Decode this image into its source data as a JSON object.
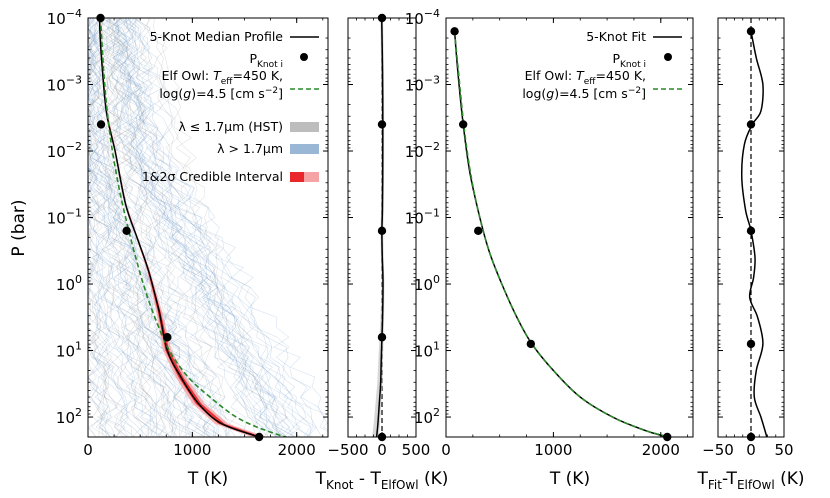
{
  "colors": {
    "median": "#000000",
    "elfowl": "#2a8a2a",
    "hst": "#a8a8a8",
    "long": "#6f9cc8",
    "ci1": "#e8262b",
    "ci2": "#f5a3a5",
    "knot_fill": "#000000"
  },
  "chart_data": [
    {
      "id": "panel-a",
      "type": "line",
      "title": "",
      "xlabel": "T (K)",
      "ylabel": "P (bar)",
      "xlim": [
        0,
        2300
      ],
      "ylim_log10": [
        -4,
        2.3
      ],
      "y_scale": "log_inverted",
      "xticks": [
        0,
        1000,
        2000
      ],
      "xtick_labels": [
        "0",
        "1000",
        "2000"
      ],
      "ytick_exponents": [
        -4,
        -3,
        -2,
        -1,
        0,
        1,
        2
      ],
      "ytick_labels": [
        {
          "base": "10",
          "exp": "−4"
        },
        {
          "base": "10",
          "exp": "−3"
        },
        {
          "base": "10",
          "exp": "−2"
        },
        {
          "base": "10",
          "exp": "−1"
        },
        {
          "base": "10",
          "exp": "0"
        },
        {
          "base": "10",
          "exp": "1"
        },
        {
          "base": "10",
          "exp": "2"
        }
      ],
      "series": [
        {
          "name": "5-Knot Median Profile",
          "kind": "median",
          "T": [
            110,
            125,
            175,
            260,
            360,
            470,
            580,
            680,
            760,
            890,
            1060,
            1280,
            1640
          ],
          "logP": [
            -4.0,
            -3.5,
            -2.6,
            -2.0,
            -1.2,
            -0.7,
            -0.2,
            0.4,
            1.0,
            1.4,
            1.8,
            2.1,
            2.3
          ]
        },
        {
          "name": "Elf Owl: T_eff=450 K, log(g)=4.5 [cm s^-2]",
          "kind": "elfowl",
          "T": [
            120,
            160,
            215,
            290,
            360,
            440,
            530,
            640,
            780,
            960,
            1170,
            1420,
            1700,
            2010,
            2300
          ],
          "logP": [
            -4.0,
            -3.0,
            -2.2,
            -1.5,
            -1.0,
            -0.5,
            0.0,
            0.5,
            1.0,
            1.4,
            1.7,
            2.0,
            2.2,
            2.35,
            2.45
          ]
        }
      ],
      "knots": {
        "T": [
          120,
          125,
          370,
          760,
          1640
        ],
        "logP": [
          -4.0,
          -2.4,
          -0.8,
          0.8,
          2.3
        ]
      },
      "legend": {
        "position": "top-right",
        "entries": [
          {
            "kind": "line-solid",
            "text": "5-Knot Median Profile"
          },
          {
            "kind": "dot",
            "text_base": "P",
            "text_sub": "Knot i"
          },
          {
            "kind": "line-dashed",
            "text": "Elf Owl: T_eff=450 K,"
          },
          {
            "kind": "none",
            "text": "log(g)=4.5 [cm s^−2]"
          },
          {
            "kind": "patch-hst",
            "text": "λ ≤ 1.7μm (HST)"
          },
          {
            "kind": "patch-long",
            "text": "λ > 1.7μm"
          },
          {
            "kind": "patch-ci",
            "text": "1&2σ Credible Interval"
          }
        ],
        "labels": {
          "median": "5-Knot Median Profile",
          "knot_base": "P",
          "knot_sub": "Knot i",
          "elf_line1_a": "Elf Owl: ",
          "elf_teff_T": "T",
          "elf_teff_sub": "eff",
          "elf_line1_b": "=450 K,",
          "elf_line2_a": "log(",
          "elf_line2_g": "g",
          "elf_line2_b": ")=4.5 [cm s",
          "elf_line2_exp": "−2",
          "elf_line2_c": "]",
          "hst": "λ ≤ 1.7μm (HST)",
          "long_a": "λ > 1.7μm",
          "ci_a": "1&2σ Credible Interval"
        }
      }
    },
    {
      "id": "panel-b",
      "type": "line",
      "xlabel_base": "T",
      "xlabel_sub1": "Knot",
      "xlabel_mid": " - T",
      "xlabel_sub2": "ElfOwl",
      "xlabel_end": " (K)",
      "xlim": [
        -500,
        500
      ],
      "xticks": [
        -500,
        0,
        500
      ],
      "xtick_labels": [
        "−500",
        "0",
        "500"
      ],
      "ylim_log10": [
        -4,
        2.3
      ],
      "series": [
        {
          "name": "residual",
          "dx": [
            -5,
            8,
            12,
            10,
            6,
            -2,
            4,
            15,
            6,
            -10,
            -20,
            -40,
            -60,
            -80
          ],
          "logP": [
            -4.0,
            -3.2,
            -2.4,
            -1.6,
            -1.1,
            -0.8,
            -0.4,
            0.0,
            0.6,
            1.1,
            1.5,
            1.8,
            2.1,
            2.3
          ]
        }
      ],
      "knots": {
        "dx": [
          0,
          0,
          0,
          0,
          0
        ],
        "logP": [
          -4.0,
          -2.4,
          -0.8,
          0.8,
          2.3
        ]
      }
    },
    {
      "id": "panel-c",
      "type": "line",
      "xlabel": "T (K)",
      "xlim": [
        0,
        2300
      ],
      "xticks": [
        0,
        1000,
        2000
      ],
      "xtick_labels": [
        "0",
        "1000",
        "2000"
      ],
      "ylim_log10": [
        -4,
        2.3
      ],
      "ytick_exponents": [
        -4,
        -3,
        -2,
        -1,
        0,
        1,
        2
      ],
      "ytick_labels": [
        {
          "base": "10",
          "exp": "−4"
        },
        {
          "base": "10",
          "exp": "−3"
        },
        {
          "base": "10",
          "exp": "−2"
        },
        {
          "base": "10",
          "exp": "−1"
        },
        {
          "base": "10",
          "exp": "0"
        },
        {
          "base": "10",
          "exp": "1"
        },
        {
          "base": "10",
          "exp": "2"
        }
      ],
      "series": [
        {
          "name": "5-Knot Fit",
          "kind": "median",
          "T": [
            80,
            110,
            160,
            220,
            300,
            400,
            520,
            660,
            800,
            1000,
            1250,
            1550,
            1850,
            2060
          ],
          "logP": [
            -3.8,
            -3.2,
            -2.4,
            -1.7,
            -1.1,
            -0.5,
            0.0,
            0.5,
            0.9,
            1.3,
            1.7,
            2.0,
            2.2,
            2.3
          ]
        },
        {
          "name": "Elf Owl",
          "kind": "elfowl",
          "T": [
            80,
            115,
            165,
            225,
            300,
            400,
            520,
            660,
            800,
            1000,
            1250,
            1550,
            1850,
            2080
          ],
          "logP": [
            -3.8,
            -3.2,
            -2.4,
            -1.7,
            -1.1,
            -0.5,
            0.0,
            0.5,
            0.9,
            1.3,
            1.7,
            2.0,
            2.2,
            2.3
          ]
        }
      ],
      "knots": {
        "T": [
          80,
          160,
          300,
          790,
          2060
        ],
        "logP": [
          -3.8,
          -2.4,
          -0.8,
          0.9,
          2.3
        ]
      },
      "legend": {
        "position": "top-right",
        "labels": {
          "median": "5-Knot Fit",
          "knot_base": "P",
          "knot_sub": "Knot i",
          "elf_line1_a": "Elf Owl: ",
          "elf_teff_T": "T",
          "elf_teff_sub": "eff",
          "elf_line1_b": "=450 K,",
          "elf_line2_a": "log(",
          "elf_line2_g": "g",
          "elf_line2_b": ")=4.5 [cm s",
          "elf_line2_exp": "−2",
          "elf_line2_c": "]"
        }
      }
    },
    {
      "id": "panel-d",
      "type": "line",
      "xlabel_base": "T",
      "xlabel_sub1": "Fit",
      "xlabel_mid": "-T",
      "xlabel_sub2": "ElfOwl",
      "xlabel_end": " (K)",
      "xlim": [
        -50,
        50
      ],
      "xticks": [
        -50,
        0,
        50
      ],
      "xtick_labels": [
        "−50",
        "0",
        "50"
      ],
      "ylim_log10": [
        -4,
        2.3
      ],
      "series": [
        {
          "name": "residual",
          "dx": [
            0,
            8,
            18,
            15,
            2,
            -10,
            -14,
            -8,
            0,
            6,
            4,
            -2,
            10,
            18,
            8,
            5,
            15,
            24
          ],
          "logP": [
            -3.8,
            -3.4,
            -3.0,
            -2.6,
            -2.4,
            -2.1,
            -1.6,
            -1.1,
            -0.8,
            -0.4,
            -0.1,
            0.2,
            0.5,
            0.9,
            1.3,
            1.7,
            2.0,
            2.3
          ]
        }
      ],
      "knots": {
        "dx": [
          0,
          0,
          0,
          0,
          0
        ],
        "logP": [
          -3.8,
          -2.4,
          -0.8,
          0.9,
          2.3
        ]
      }
    }
  ]
}
